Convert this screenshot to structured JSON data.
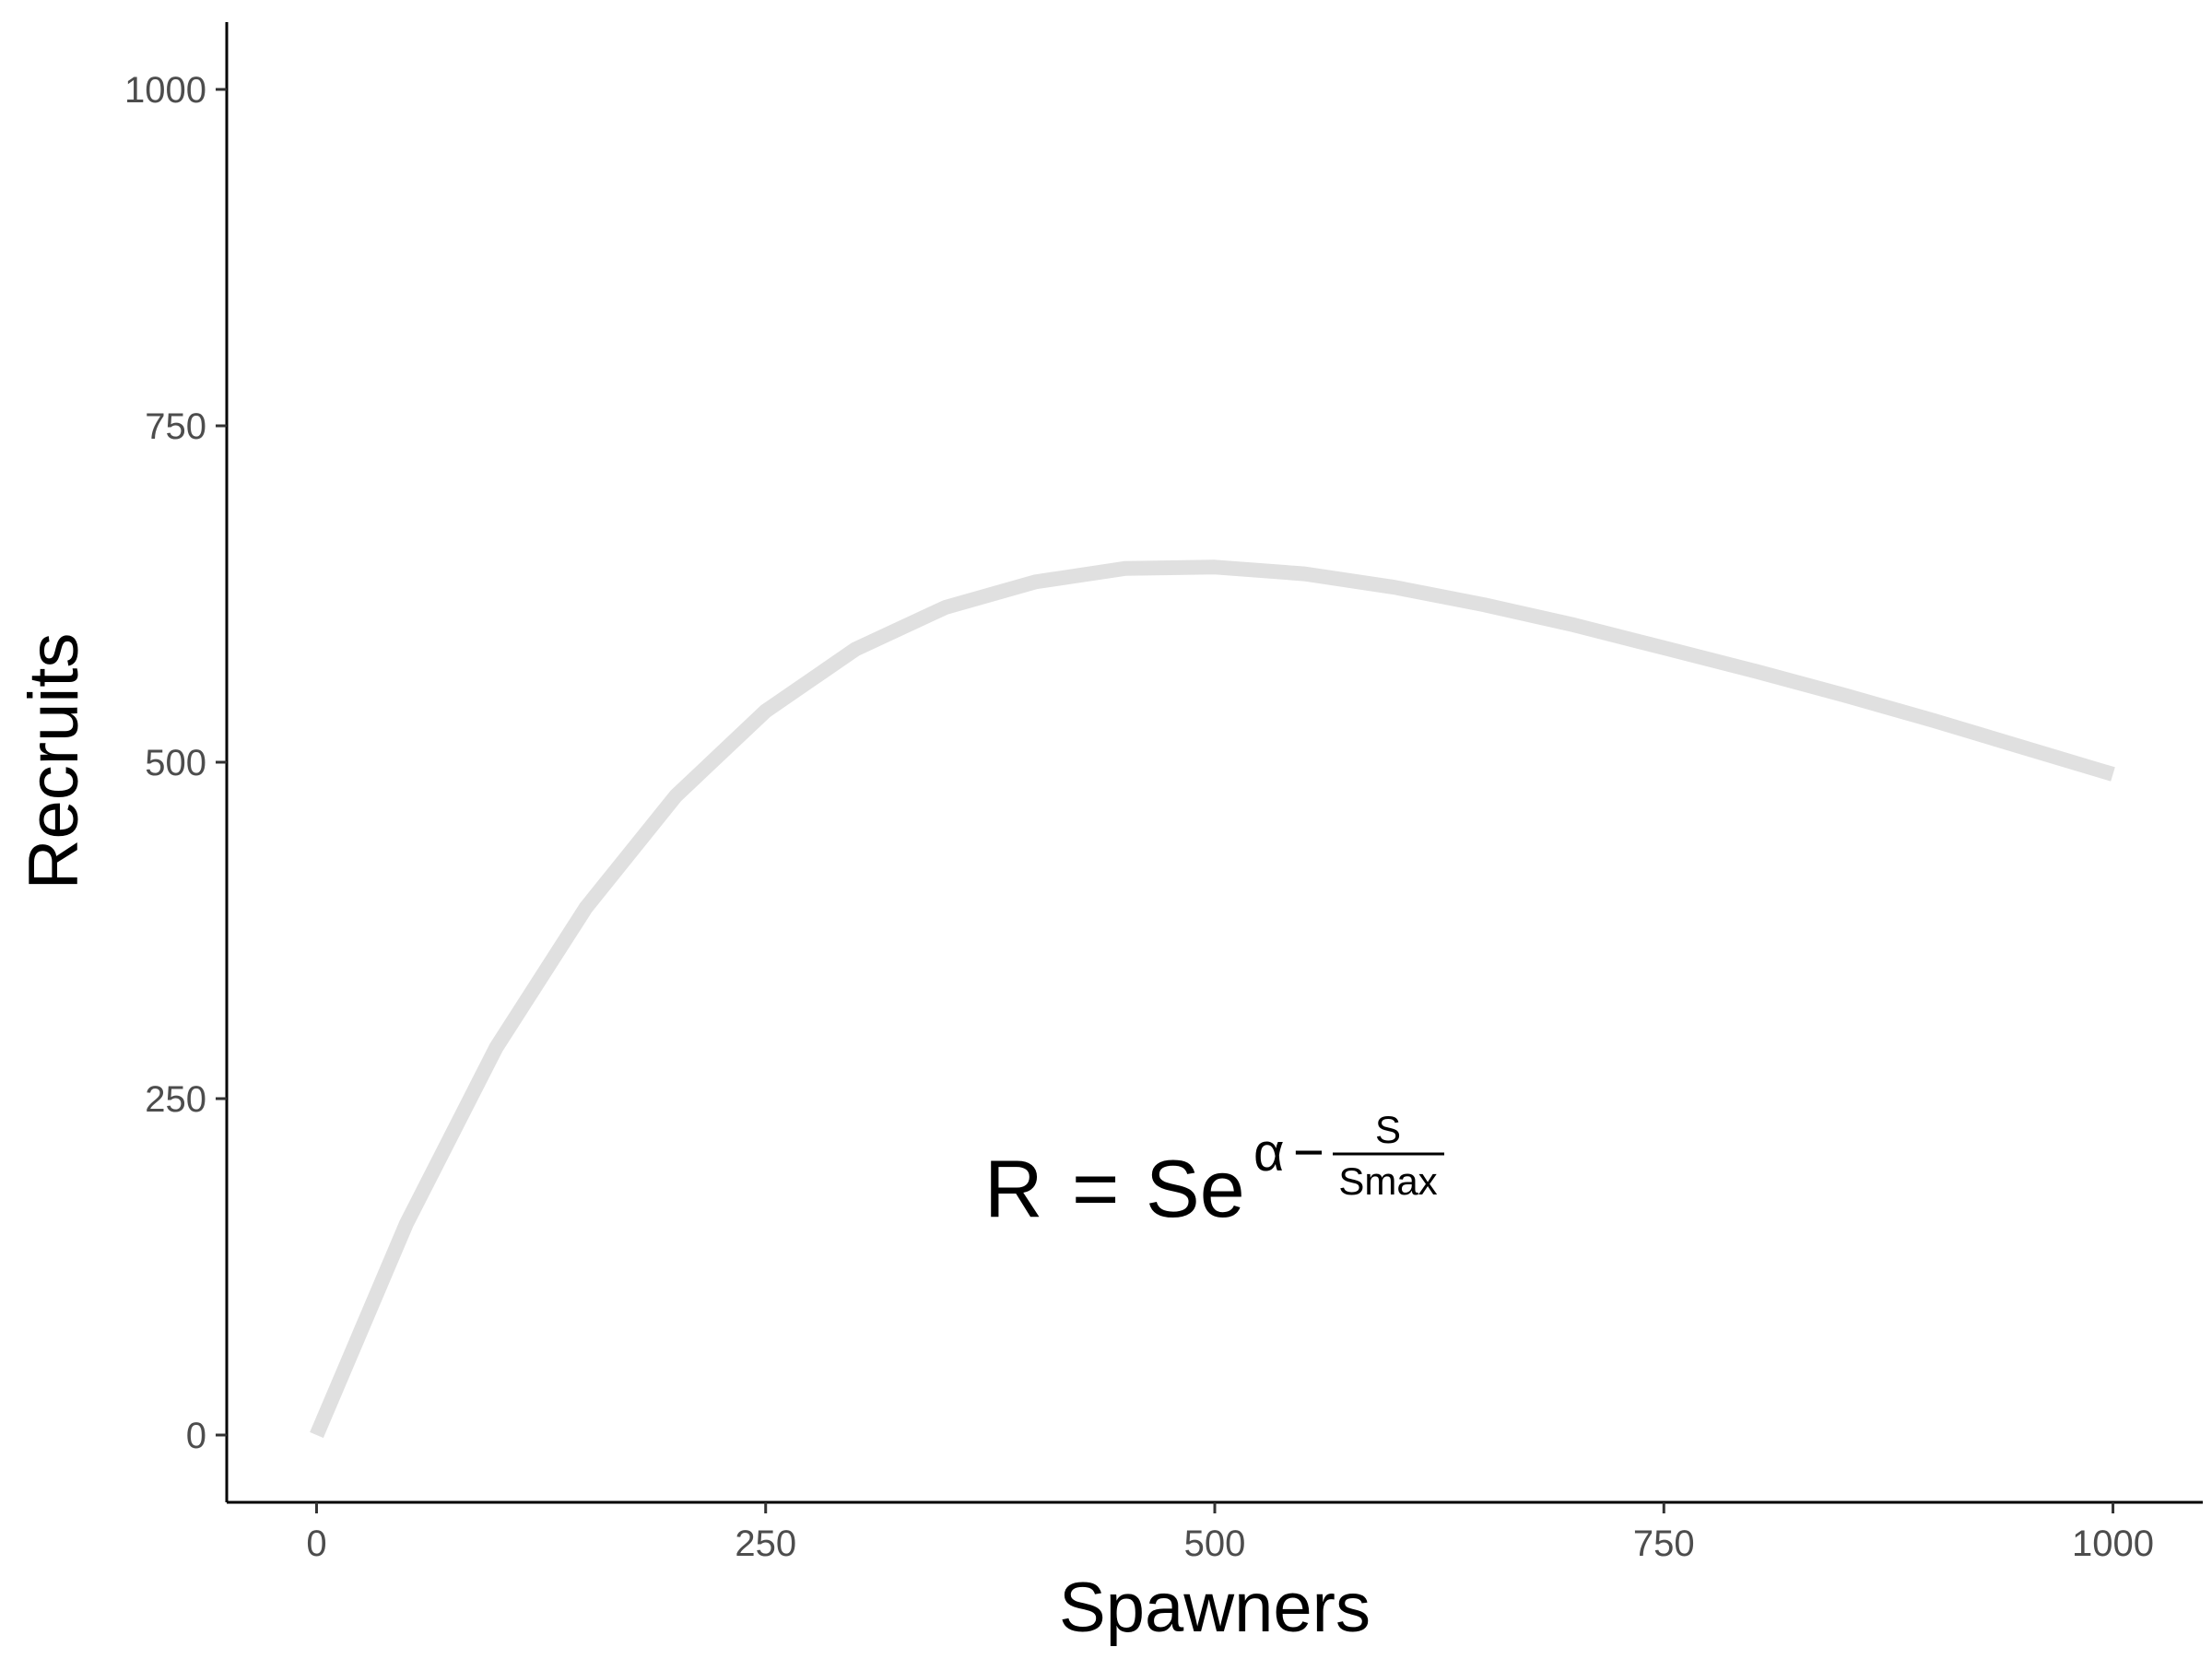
{
  "chart_data": {
    "type": "line",
    "title": "",
    "xlabel": "Spawners",
    "ylabel": "Recruits",
    "xlim": [
      -50,
      1050
    ],
    "ylim": [
      -50,
      1050
    ],
    "x_ticks": [
      0,
      250,
      500,
      750,
      1000
    ],
    "y_ticks": [
      0,
      250,
      500,
      750,
      1000
    ],
    "grid": false,
    "legend": "none",
    "series": [
      {
        "color": "#e0e0e0",
        "x": [
          0,
          50,
          100,
          150,
          200,
          250,
          300,
          350,
          400,
          450,
          500,
          550,
          600,
          650,
          700,
          750,
          800,
          850,
          900,
          950,
          1000
        ],
        "y": [
          0,
          157,
          288,
          392,
          475,
          538,
          584,
          615,
          634,
          644,
          645,
          640,
          630,
          617,
          602,
          585,
          568,
          550,
          531,
          511,
          491
        ]
      }
    ],
    "annotation": {
      "lhs": "R",
      "equals": "=",
      "base": "Se",
      "exp_alpha": "α",
      "exp_minus": "−",
      "frac_num": "S",
      "frac_den": "Smax"
    }
  }
}
